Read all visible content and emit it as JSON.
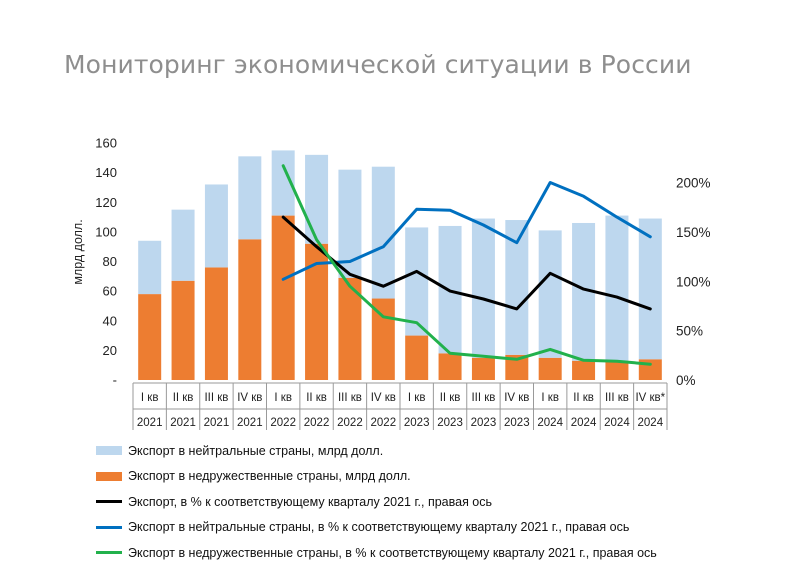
{
  "title": "Мониторинг экономической ситуации в России",
  "colors": {
    "neutral_bar": "#bdd7ee",
    "unfriendly_bar": "#ed7d31",
    "total_line": "#000000",
    "neutral_line": "#0070c0",
    "unfriendly_line": "#22b14c"
  },
  "chart_data": {
    "type": "bar",
    "ylabel": "млрд долл.",
    "ylim": [
      0,
      160
    ],
    "y_ticks": [
      "-",
      "20",
      "40",
      "60",
      "80",
      "100",
      "120",
      "140",
      "160"
    ],
    "y2lim": [
      0,
      2.4
    ],
    "y2_ticks": [
      "0%",
      "50%",
      "100%",
      "150%",
      "200%"
    ],
    "categories": [
      {
        "q": "I кв",
        "y": "2021"
      },
      {
        "q": "II кв",
        "y": "2021"
      },
      {
        "q": "III кв",
        "y": "2021"
      },
      {
        "q": "IV кв",
        "y": "2021"
      },
      {
        "q": "I кв",
        "y": "2022"
      },
      {
        "q": "II кв",
        "y": "2022"
      },
      {
        "q": "III кв",
        "y": "2022"
      },
      {
        "q": "IV кв",
        "y": "2022"
      },
      {
        "q": "I кв",
        "y": "2023"
      },
      {
        "q": "II кв",
        "y": "2023"
      },
      {
        "q": "III кв",
        "y": "2023"
      },
      {
        "q": "IV кв",
        "y": "2023"
      },
      {
        "q": "I кв",
        "y": "2024"
      },
      {
        "q": "II кв",
        "y": "2024"
      },
      {
        "q": "III кв",
        "y": "2024"
      },
      {
        "q": "IV кв*",
        "y": "2024"
      }
    ],
    "series": [
      {
        "name": "Экспорт в нейтральные страны, млрд долл.",
        "kind": "bar",
        "axis": "left",
        "values": [
          36,
          48,
          56,
          56,
          44,
          60,
          73,
          89,
          73,
          86,
          94,
          91,
          86,
          93,
          98,
          95
        ]
      },
      {
        "name": "Экспорт в недружественные страны, млрд долл.",
        "kind": "bar",
        "axis": "left",
        "values": [
          58,
          67,
          76,
          95,
          111,
          92,
          69,
          55,
          30,
          18,
          15,
          17,
          15,
          13,
          13,
          14
        ]
      },
      {
        "name": "Экспорт, в % к соответствующему кварталу 2021 г., правая ось",
        "kind": "line",
        "axis": "right",
        "values": [
          null,
          null,
          null,
          null,
          1.65,
          1.35,
          1.07,
          0.95,
          1.1,
          0.9,
          0.82,
          0.72,
          1.08,
          0.92,
          0.84,
          0.72
        ]
      },
      {
        "name": "Экспорт в нейтральные страны, в % к соответствующему кварталу 2021 г., правая ось",
        "kind": "line",
        "axis": "right",
        "values": [
          null,
          null,
          null,
          null,
          1.02,
          1.18,
          1.2,
          1.35,
          1.73,
          1.72,
          1.57,
          1.39,
          2.0,
          1.86,
          1.65,
          1.45
        ]
      },
      {
        "name": "Экспорт в недружественные страны, в % к соответствующему кварталу 2021 г., правая ось",
        "kind": "line",
        "axis": "right",
        "values": [
          null,
          null,
          null,
          null,
          2.17,
          1.42,
          0.95,
          0.64,
          0.58,
          0.27,
          0.24,
          0.21,
          0.31,
          0.2,
          0.19,
          0.16
        ]
      }
    ]
  }
}
